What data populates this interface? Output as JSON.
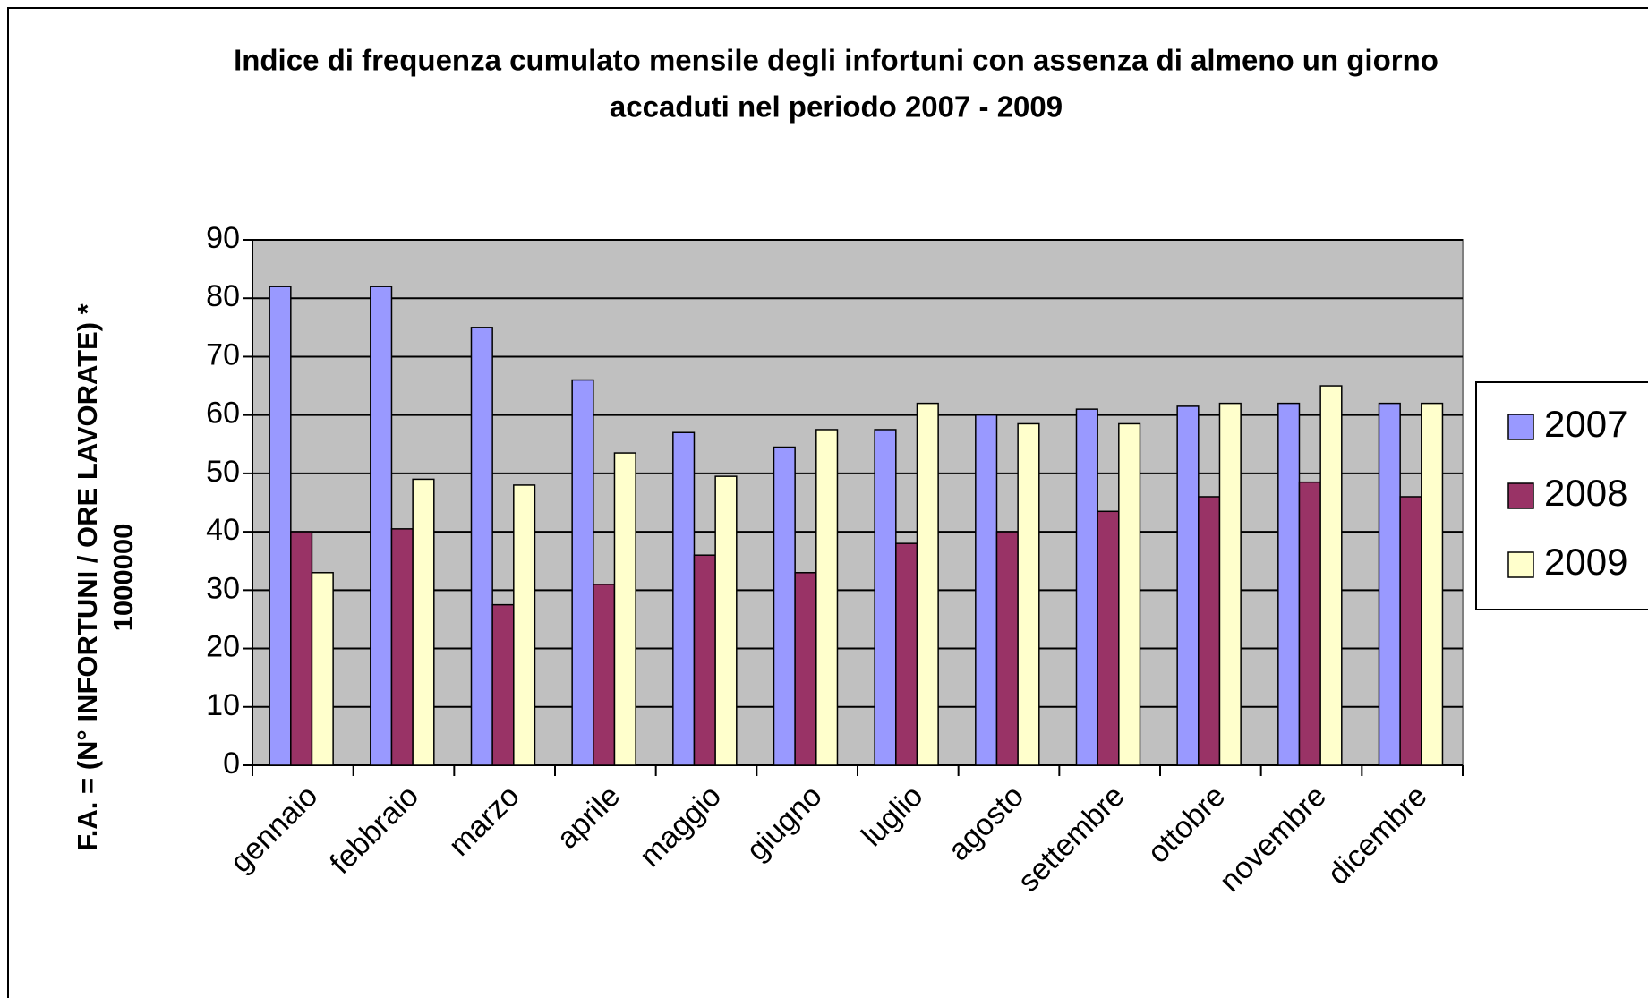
{
  "chart_data": {
    "type": "bar",
    "title": [
      "Indice di frequenza cumulato  mensile degli infortuni  con assenza  di almeno  un giorno",
      "accaduti  nel periodo 2007  - 2009"
    ],
    "y_label": [
      "F.A. = (N° INFORTUNI / ORE LAVORATE) *",
      "1000000"
    ],
    "categories": [
      "gennaio",
      "febbraio",
      "marzo",
      "aprile",
      "maggio",
      "giugno",
      "luglio",
      "agosto",
      "settembre",
      "ottobre",
      "novembre",
      "dicembre"
    ],
    "series": [
      {
        "name": "2007",
        "color": "#9999ff",
        "values": [
          82,
          82,
          75,
          66,
          57,
          54.5,
          57.5,
          60,
          61,
          61.5,
          62,
          62
        ]
      },
      {
        "name": "2008",
        "color": "#993366",
        "values": [
          40,
          40.5,
          27.5,
          31,
          36,
          33,
          38,
          40,
          43.5,
          46,
          48.5,
          46
        ]
      },
      {
        "name": "2009",
        "color": "#ffffcc",
        "values": [
          33,
          49,
          48,
          53.5,
          49.5,
          57.5,
          62,
          58.5,
          58.5,
          62,
          65,
          62
        ]
      }
    ],
    "ylim": [
      0,
      90
    ],
    "yticks": [
      0,
      10,
      20,
      30,
      40,
      50,
      60,
      70,
      80,
      90
    ],
    "grid": true,
    "plot_background": "#c0c0c0",
    "legend": "right"
  }
}
